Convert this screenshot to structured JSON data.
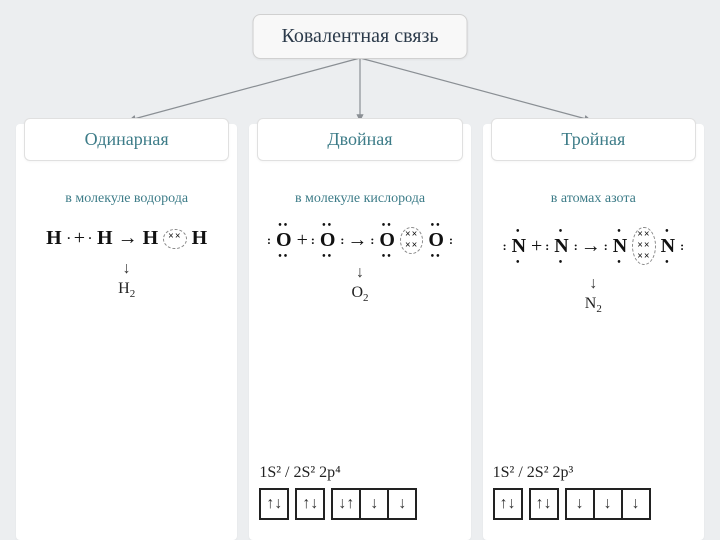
{
  "title": "Ковалентная связь",
  "columns": [
    {
      "header": "Одинарная",
      "subtitle": "в молекуле водорода",
      "left_atom": "H",
      "right_atom": "H",
      "left_dots_top": "",
      "left_dots_bot": "",
      "left_side": "·",
      "right_dots_top": "",
      "right_dots_bot": "",
      "right_side": "·",
      "bond_pairs": 1,
      "result_label": "H",
      "result_sub": "2",
      "config_text": "",
      "orbitals": []
    },
    {
      "header": "Двойная",
      "subtitle": "в молекуле кислорода",
      "left_atom": "O",
      "right_atom": "O",
      "left_dots_top": "••",
      "left_dots_bot": "••",
      "left_side": ":",
      "right_dots_top": "••",
      "right_dots_bot": "••",
      "right_side": ":",
      "bond_pairs": 2,
      "result_label": "O",
      "result_sub": "2",
      "config_text": "1S² / 2S²   2p⁴",
      "orbitals": [
        [
          "↑↓"
        ],
        [
          "↑↓"
        ],
        [
          "↓↑",
          "↓",
          "↓"
        ]
      ]
    },
    {
      "header": "Тройная",
      "subtitle": "в атомах азота",
      "left_atom": "N",
      "right_atom": "N",
      "left_dots_top": "•",
      "left_dots_bot": "•",
      "left_side": ":",
      "right_dots_top": "•",
      "right_dots_bot": "•",
      "right_side": ":",
      "bond_pairs": 3,
      "result_label": "N",
      "result_sub": "2",
      "config_text": "1S² / 2S²   2p³",
      "orbitals": [
        [
          "↑↓"
        ],
        [
          "↑↓"
        ],
        [
          "↓",
          "↓",
          "↓"
        ]
      ]
    }
  ],
  "colors": {
    "background": "#eceef0",
    "panel": "#ffffff",
    "header_text": "#3d7c88",
    "title_text": "#2b3a4a",
    "arrow": "#8a8f94",
    "border": "#d0d0d0",
    "orbital_border": "#222222"
  }
}
